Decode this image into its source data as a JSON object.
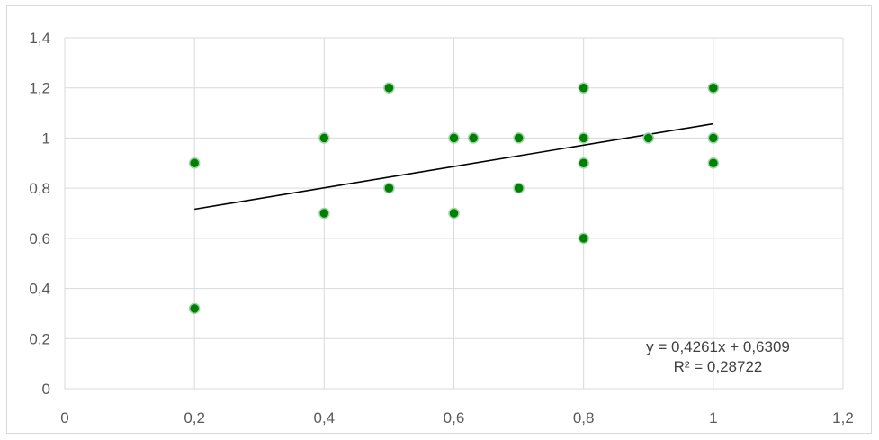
{
  "chart_data": {
    "type": "scatter",
    "title": "",
    "xlabel": "",
    "ylabel": "",
    "xlim": [
      0,
      1.2
    ],
    "ylim": [
      0,
      1.4
    ],
    "x_ticks": [
      "0",
      "0,2",
      "0,4",
      "0,6",
      "0,8",
      "1",
      "1,2"
    ],
    "y_ticks": [
      "0",
      "0,2",
      "0,4",
      "0,6",
      "0,8",
      "1",
      "1,2",
      "1,4"
    ],
    "grid": true,
    "point_color": "#008000",
    "points": [
      {
        "x": 0.2,
        "y": 0.9
      },
      {
        "x": 0.2,
        "y": 0.32
      },
      {
        "x": 0.4,
        "y": 1.0
      },
      {
        "x": 0.4,
        "y": 0.7
      },
      {
        "x": 0.5,
        "y": 1.2
      },
      {
        "x": 0.5,
        "y": 0.8
      },
      {
        "x": 0.6,
        "y": 1.0
      },
      {
        "x": 0.6,
        "y": 0.7
      },
      {
        "x": 0.63,
        "y": 1.0
      },
      {
        "x": 0.7,
        "y": 1.0
      },
      {
        "x": 0.7,
        "y": 0.8
      },
      {
        "x": 0.8,
        "y": 1.2
      },
      {
        "x": 0.8,
        "y": 1.0
      },
      {
        "x": 0.8,
        "y": 0.9
      },
      {
        "x": 0.8,
        "y": 0.6
      },
      {
        "x": 0.9,
        "y": 1.0
      },
      {
        "x": 1.0,
        "y": 1.2
      },
      {
        "x": 1.0,
        "y": 1.0
      },
      {
        "x": 1.0,
        "y": 0.9
      }
    ],
    "trendline": {
      "type": "linear",
      "slope": 0.4261,
      "intercept": 0.6309,
      "x_range": [
        0.2,
        1.0
      ],
      "color": "#000000",
      "equation_label": "y = 0,4261x + 0,6309",
      "r2_label": "R² = 0,28722"
    }
  }
}
